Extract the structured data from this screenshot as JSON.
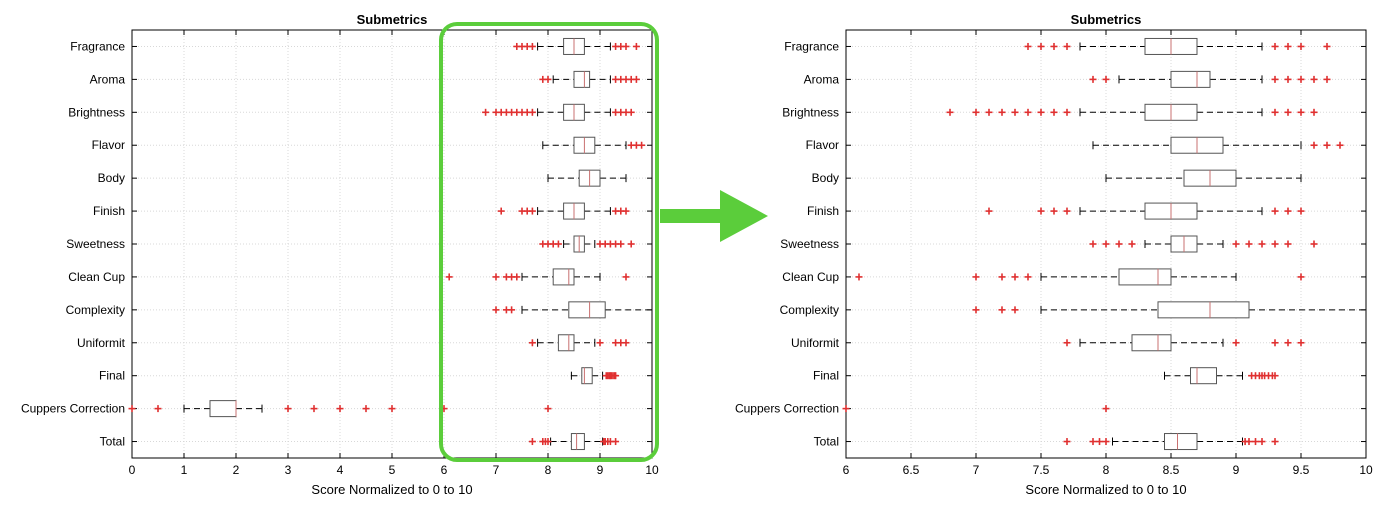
{
  "chart_data": [
    {
      "type": "box",
      "title": "Submetrics",
      "xlabel": "Score Normalized to 0 to 10",
      "ylabel": "",
      "xlim": [
        0,
        10
      ],
      "xticks": [
        "0",
        "1",
        "2",
        "3",
        "4",
        "5",
        "6",
        "7",
        "8",
        "9",
        "10"
      ],
      "grid": true,
      "categories": [
        "Fragrance",
        "Aroma",
        "Brightness",
        "Flavor",
        "Body",
        "Finish",
        "Sweetness",
        "Clean Cup",
        "Complexity",
        "Uniformit",
        "Final",
        "Cuppers Correction",
        "Total"
      ],
      "boxes": [
        {
          "whisker_low": 7.8,
          "q1": 8.3,
          "median": 8.5,
          "q3": 8.7,
          "whisker_high": 9.2,
          "outliers": [
            7.4,
            7.5,
            7.6,
            7.7,
            9.3,
            9.4,
            9.5,
            9.7
          ]
        },
        {
          "whisker_low": 8.1,
          "q1": 8.5,
          "median": 8.7,
          "q3": 8.8,
          "whisker_high": 9.2,
          "outliers": [
            7.9,
            8.0,
            9.3,
            9.4,
            9.5,
            9.6,
            9.7
          ]
        },
        {
          "whisker_low": 7.8,
          "q1": 8.3,
          "median": 8.5,
          "q3": 8.7,
          "whisker_high": 9.2,
          "outliers": [
            6.8,
            7.0,
            7.1,
            7.2,
            7.3,
            7.4,
            7.5,
            7.6,
            7.7,
            9.3,
            9.4,
            9.5,
            9.6
          ]
        },
        {
          "whisker_low": 7.9,
          "q1": 8.5,
          "median": 8.7,
          "q3": 8.9,
          "whisker_high": 9.5,
          "outliers": [
            9.6,
            9.7,
            9.8
          ]
        },
        {
          "whisker_low": 8.0,
          "q1": 8.6,
          "median": 8.8,
          "q3": 9.0,
          "whisker_high": 9.5,
          "outliers": []
        },
        {
          "whisker_low": 7.8,
          "q1": 8.3,
          "median": 8.5,
          "q3": 8.7,
          "whisker_high": 9.2,
          "outliers": [
            7.1,
            7.5,
            7.6,
            7.7,
            9.3,
            9.4,
            9.5
          ]
        },
        {
          "whisker_low": 8.3,
          "q1": 8.5,
          "median": 8.6,
          "q3": 8.7,
          "whisker_high": 8.9,
          "outliers": [
            7.9,
            8.0,
            8.1,
            8.2,
            9.0,
            9.1,
            9.2,
            9.3,
            9.4,
            9.6
          ]
        },
        {
          "whisker_low": 7.5,
          "q1": 8.1,
          "median": 8.4,
          "q3": 8.5,
          "whisker_high": 9.0,
          "outliers": [
            6.1,
            7.0,
            7.2,
            7.3,
            7.4,
            9.5
          ]
        },
        {
          "whisker_low": 7.5,
          "q1": 8.4,
          "median": 8.8,
          "q3": 9.1,
          "whisker_high": 10.0,
          "outliers": [
            7.0,
            7.2,
            7.3
          ]
        },
        {
          "whisker_low": 7.8,
          "q1": 8.2,
          "median": 8.4,
          "q3": 8.5,
          "whisker_high": 8.9,
          "outliers": [
            7.7,
            9.0,
            9.3,
            9.4,
            9.5
          ]
        },
        {
          "whisker_low": 8.45,
          "q1": 8.65,
          "median": 8.7,
          "q3": 8.85,
          "whisker_high": 9.05,
          "outliers": [
            9.12,
            9.15,
            9.18,
            9.2,
            9.22,
            9.25,
            9.28,
            9.3
          ]
        },
        {
          "whisker_low": 1.0,
          "q1": 1.5,
          "median": 2.0,
          "q3": 2.0,
          "whisker_high": 2.5,
          "outliers": [
            0.0,
            0.5,
            3.0,
            3.5,
            4.0,
            4.5,
            5.0,
            6.0,
            8.0
          ]
        },
        {
          "whisker_low": 8.05,
          "q1": 8.45,
          "median": 8.55,
          "q3": 8.7,
          "whisker_high": 9.05,
          "outliers": [
            7.7,
            7.9,
            7.95,
            8.0,
            9.07,
            9.1,
            9.15,
            9.2,
            9.3
          ]
        }
      ]
    },
    {
      "type": "box",
      "title": "Submetrics",
      "xlabel": "Score Normalized to 0 to 10",
      "ylabel": "",
      "xlim": [
        6,
        10
      ],
      "xticks": [
        "6",
        "6.5",
        "7",
        "7.5",
        "8",
        "8.5",
        "9",
        "9.5",
        "10"
      ],
      "grid": true,
      "categories": [
        "Fragrance",
        "Aroma",
        "Brightness",
        "Flavor",
        "Body",
        "Finish",
        "Sweetness",
        "Clean Cup",
        "Complexity",
        "Uniformit",
        "Final",
        "Cuppers Correction",
        "Total"
      ],
      "boxes": [
        {
          "whisker_low": 7.8,
          "q1": 8.3,
          "median": 8.5,
          "q3": 8.7,
          "whisker_high": 9.2,
          "outliers": [
            7.4,
            7.5,
            7.6,
            7.7,
            9.3,
            9.4,
            9.5,
            9.7
          ]
        },
        {
          "whisker_low": 8.1,
          "q1": 8.5,
          "median": 8.7,
          "q3": 8.8,
          "whisker_high": 9.2,
          "outliers": [
            7.9,
            8.0,
            9.3,
            9.4,
            9.5,
            9.6,
            9.7
          ]
        },
        {
          "whisker_low": 7.8,
          "q1": 8.3,
          "median": 8.5,
          "q3": 8.7,
          "whisker_high": 9.2,
          "outliers": [
            6.8,
            7.0,
            7.1,
            7.2,
            7.3,
            7.4,
            7.5,
            7.6,
            7.7,
            9.3,
            9.4,
            9.5,
            9.6
          ]
        },
        {
          "whisker_low": 7.9,
          "q1": 8.5,
          "median": 8.7,
          "q3": 8.9,
          "whisker_high": 9.5,
          "outliers": [
            9.6,
            9.7,
            9.8
          ]
        },
        {
          "whisker_low": 8.0,
          "q1": 8.6,
          "median": 8.8,
          "q3": 9.0,
          "whisker_high": 9.5,
          "outliers": []
        },
        {
          "whisker_low": 7.8,
          "q1": 8.3,
          "median": 8.5,
          "q3": 8.7,
          "whisker_high": 9.2,
          "outliers": [
            7.1,
            7.5,
            7.6,
            7.7,
            9.3,
            9.4,
            9.5
          ]
        },
        {
          "whisker_low": 8.3,
          "q1": 8.5,
          "median": 8.6,
          "q3": 8.7,
          "whisker_high": 8.9,
          "outliers": [
            7.9,
            8.0,
            8.1,
            8.2,
            9.0,
            9.1,
            9.2,
            9.3,
            9.4,
            9.6
          ]
        },
        {
          "whisker_low": 7.5,
          "q1": 8.1,
          "median": 8.4,
          "q3": 8.5,
          "whisker_high": 9.0,
          "outliers": [
            6.1,
            7.0,
            7.2,
            7.3,
            7.4,
            9.5
          ]
        },
        {
          "whisker_low": 7.5,
          "q1": 8.4,
          "median": 8.8,
          "q3": 9.1,
          "whisker_high": 10.0,
          "outliers": [
            7.0,
            7.2,
            7.3
          ]
        },
        {
          "whisker_low": 7.8,
          "q1": 8.2,
          "median": 8.4,
          "q3": 8.5,
          "whisker_high": 8.9,
          "outliers": [
            7.7,
            9.0,
            9.3,
            9.4,
            9.5
          ]
        },
        {
          "whisker_low": 8.45,
          "q1": 8.65,
          "median": 8.7,
          "q3": 8.85,
          "whisker_high": 9.05,
          "outliers": [
            9.12,
            9.15,
            9.18,
            9.2,
            9.22,
            9.25,
            9.28,
            9.3
          ]
        },
        {
          "whisker_low": null,
          "q1": null,
          "median": null,
          "q3": null,
          "whisker_high": null,
          "outliers": [
            6.0,
            8.0
          ]
        },
        {
          "whisker_low": 8.05,
          "q1": 8.45,
          "median": 8.55,
          "q3": 8.7,
          "whisker_high": 9.05,
          "outliers": [
            7.7,
            7.9,
            7.95,
            8.0,
            9.07,
            9.1,
            9.15,
            9.2,
            9.3
          ]
        }
      ]
    }
  ],
  "colors": {
    "box": "#555555",
    "median": "#c87070",
    "outlier": "#e03030",
    "grid": "#d8d8d8",
    "highlight": "#5bcd3b",
    "arrow": "#5bcd3b"
  },
  "annotations": {
    "highlight_range": [
      6,
      10
    ],
    "arrow": "right"
  }
}
